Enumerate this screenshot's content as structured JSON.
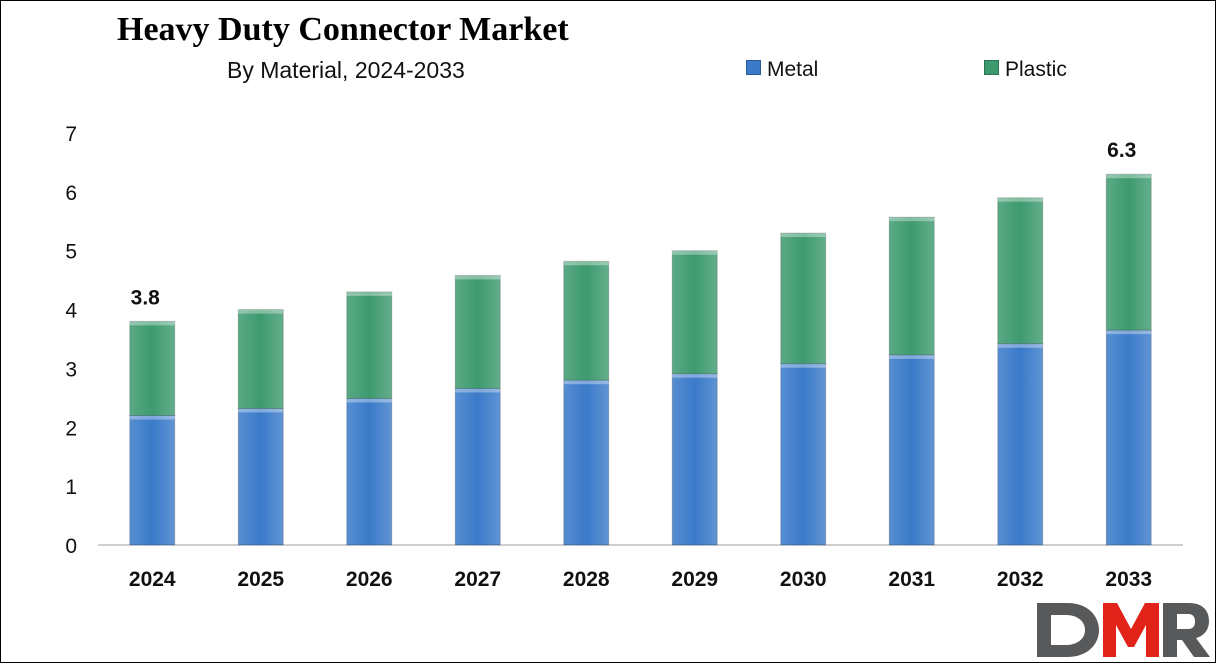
{
  "chart_data": {
    "type": "bar",
    "stacked": true,
    "title": "Heavy Duty Connector Market",
    "subtitle": "By Material, 2024-2033",
    "categories": [
      "2024",
      "2025",
      "2026",
      "2027",
      "2028",
      "2029",
      "2030",
      "2031",
      "2032",
      "2033"
    ],
    "series": [
      {
        "name": "Metal",
        "color": "#3a7ac9",
        "values": [
          2.2,
          2.32,
          2.49,
          2.66,
          2.8,
          2.91,
          3.08,
          3.23,
          3.42,
          3.65
        ]
      },
      {
        "name": "Plastic",
        "color": "#3d9a6f",
        "values": [
          1.6,
          1.68,
          1.81,
          1.92,
          2.02,
          2.09,
          2.22,
          2.34,
          2.48,
          2.65
        ]
      }
    ],
    "totals_labels": [
      {
        "category": "2024",
        "text": "3.8"
      },
      {
        "category": "2033",
        "text": "6.3"
      }
    ],
    "ylim": [
      0,
      7
    ],
    "yticks": [
      0,
      1,
      2,
      3,
      4,
      5,
      6,
      7
    ],
    "grid": false,
    "legend_position": "top-right"
  },
  "brand": {
    "logo_text": "DMR",
    "colors": {
      "dark": "#58595b",
      "red": "#e2231a"
    }
  }
}
